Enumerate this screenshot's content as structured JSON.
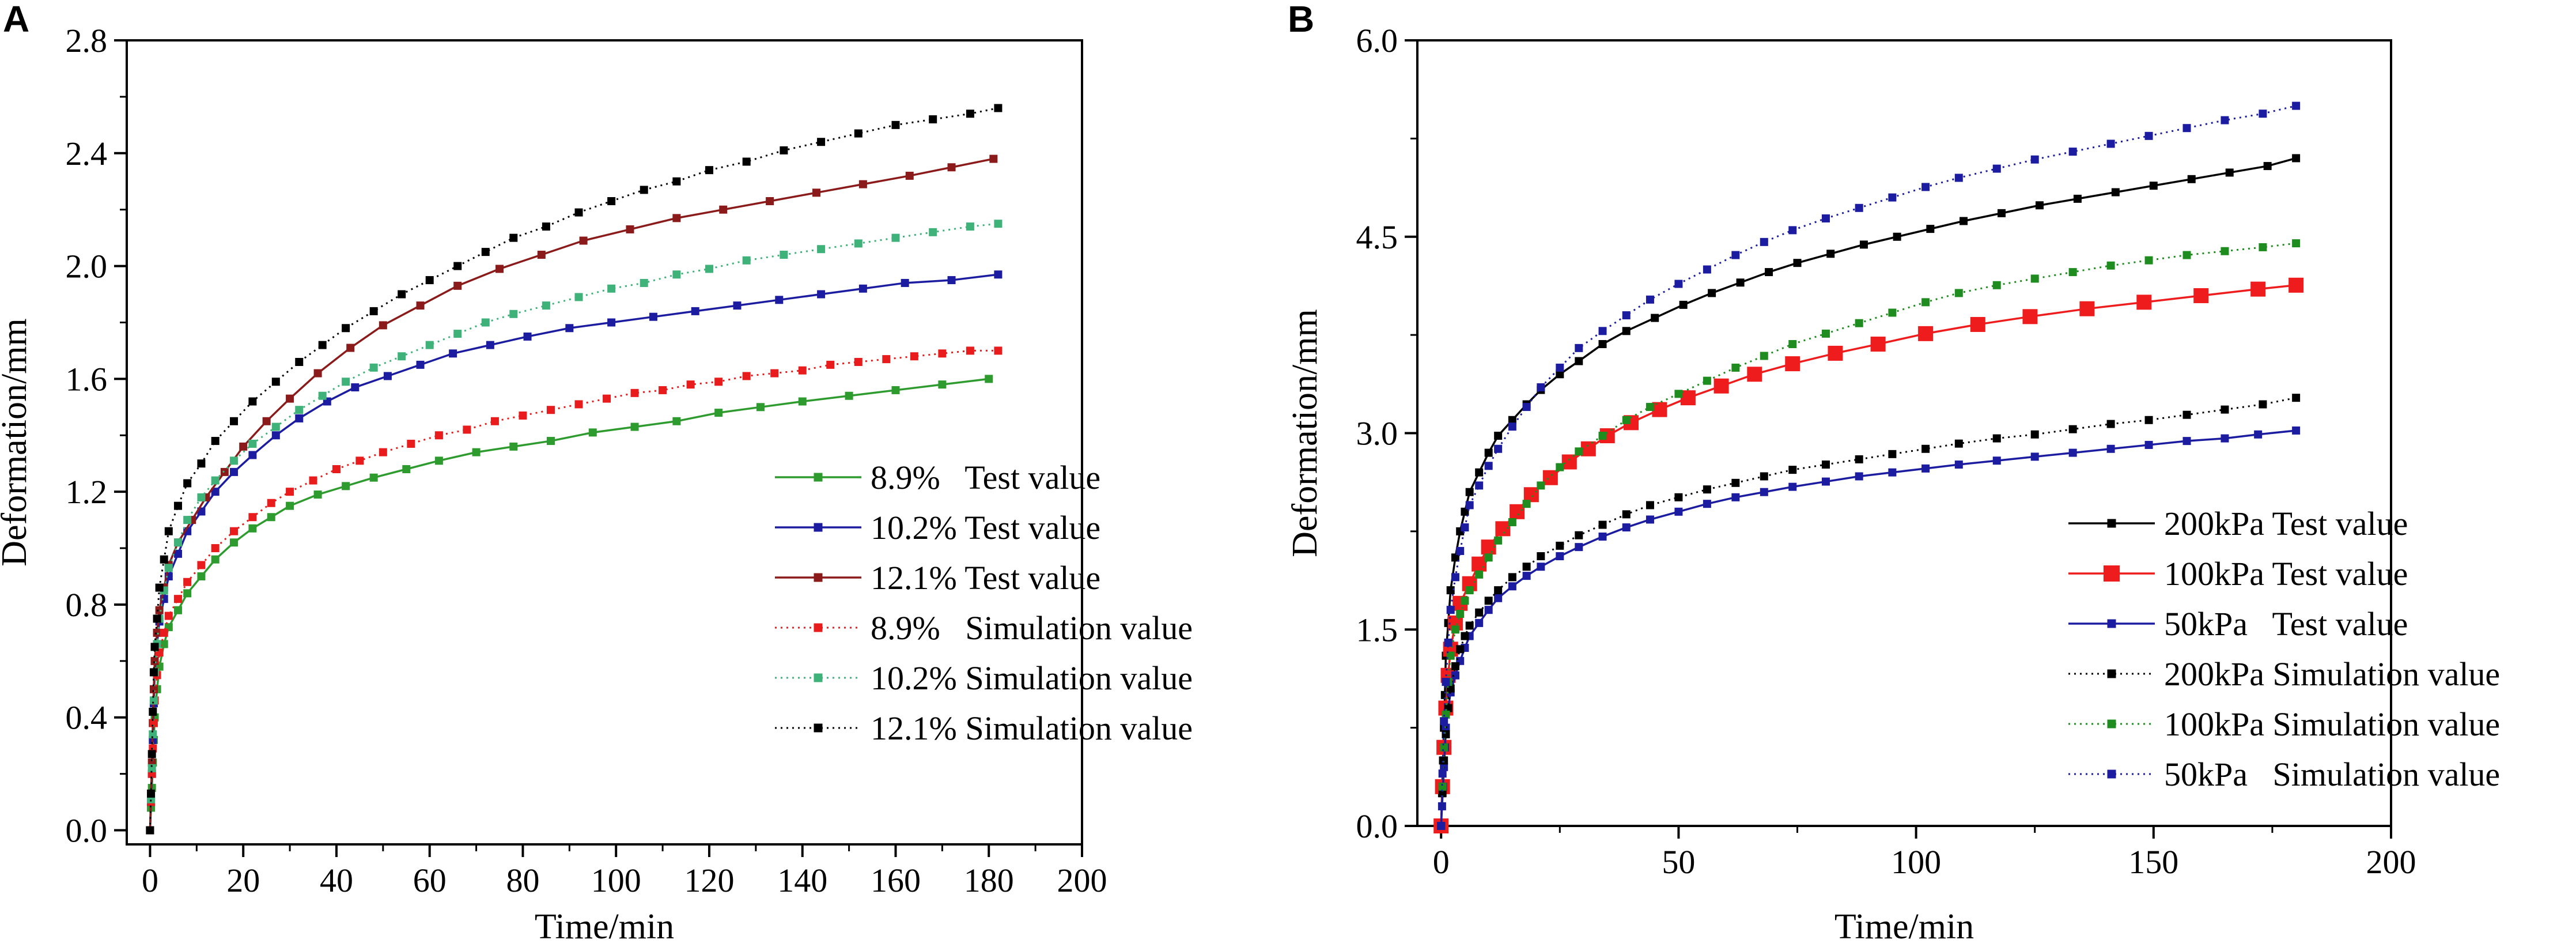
{
  "chart_data": [
    {
      "type": "line",
      "panel_label": "A",
      "xlabel": "Time/min",
      "ylabel": "Deformation/mm",
      "xlim": [
        -5,
        200
      ],
      "ylim": [
        -0.05,
        2.8
      ],
      "xticks": [
        "0",
        "20",
        "40",
        "60",
        "80",
        "100",
        "120",
        "140",
        "160",
        "180",
        "200"
      ],
      "yticks": [
        "0.0",
        "0.4",
        "0.8",
        "1.2",
        "1.6",
        "2.0",
        "2.4",
        "2.8"
      ],
      "legend_position": "lower-right",
      "series": [
        {
          "name": "8.9%   Test value",
          "color": "#2e9b2e",
          "style": "solid",
          "x": [
            0,
            0.2,
            0.4,
            0.6,
            0.8,
            1,
            1.5,
            2,
            3,
            4,
            6,
            8,
            11,
            14,
            18,
            22,
            26,
            30,
            36,
            42,
            48,
            55,
            62,
            70,
            78,
            86,
            95,
            104,
            113,
            122,
            131,
            140,
            150,
            160,
            170,
            180
          ],
          "y": [
            0,
            0.08,
            0.15,
            0.24,
            0.32,
            0.4,
            0.5,
            0.58,
            0.66,
            0.72,
            0.78,
            0.84,
            0.9,
            0.96,
            1.02,
            1.07,
            1.11,
            1.15,
            1.19,
            1.22,
            1.25,
            1.28,
            1.31,
            1.34,
            1.36,
            1.38,
            1.41,
            1.43,
            1.45,
            1.48,
            1.5,
            1.52,
            1.54,
            1.56,
            1.58,
            1.6
          ]
        },
        {
          "name": "10.2% Test value",
          "color": "#1c1ca0",
          "style": "solid",
          "x": [
            0,
            0.2,
            0.4,
            0.6,
            0.8,
            1,
            1.5,
            2,
            3,
            4,
            6,
            8,
            11,
            14,
            18,
            22,
            27,
            32,
            38,
            44,
            51,
            58,
            65,
            73,
            81,
            90,
            99,
            108,
            117,
            126,
            135,
            144,
            153,
            162,
            172,
            182
          ],
          "y": [
            0,
            0.1,
            0.2,
            0.32,
            0.45,
            0.56,
            0.66,
            0.74,
            0.82,
            0.9,
            0.98,
            1.06,
            1.13,
            1.2,
            1.27,
            1.33,
            1.4,
            1.46,
            1.52,
            1.57,
            1.61,
            1.65,
            1.69,
            1.72,
            1.75,
            1.78,
            1.8,
            1.82,
            1.84,
            1.86,
            1.88,
            1.9,
            1.92,
            1.94,
            1.95,
            1.97
          ]
        },
        {
          "name": "12.1% Test value",
          "color": "#8b1a1a",
          "style": "solid",
          "x": [
            0,
            0.2,
            0.4,
            0.6,
            0.8,
            1,
            1.5,
            2,
            3,
            4,
            6,
            9,
            12,
            16,
            20,
            25,
            30,
            36,
            43,
            50,
            58,
            66,
            75,
            84,
            93,
            103,
            113,
            123,
            133,
            143,
            153,
            163,
            172,
            181
          ],
          "y": [
            0,
            0.12,
            0.24,
            0.38,
            0.5,
            0.6,
            0.7,
            0.78,
            0.86,
            0.94,
            1.02,
            1.1,
            1.18,
            1.27,
            1.36,
            1.45,
            1.53,
            1.62,
            1.71,
            1.79,
            1.86,
            1.93,
            1.99,
            2.04,
            2.09,
            2.13,
            2.17,
            2.2,
            2.23,
            2.26,
            2.29,
            2.32,
            2.35,
            2.38
          ]
        },
        {
          "name": "8.9%   Simulation value",
          "color": "#e81c1c",
          "style": "dotted",
          "x": [
            0,
            0.2,
            0.4,
            0.6,
            0.8,
            1,
            1.5,
            2,
            3,
            4,
            6,
            8,
            11,
            14,
            18,
            22,
            26,
            30,
            35,
            40,
            45,
            50,
            56,
            62,
            68,
            74,
            80,
            86,
            92,
            98,
            104,
            110,
            116,
            122,
            128,
            134,
            140,
            146,
            152,
            158,
            164,
            170,
            176,
            182
          ],
          "y": [
            0,
            0.1,
            0.2,
            0.29,
            0.38,
            0.46,
            0.55,
            0.63,
            0.7,
            0.76,
            0.82,
            0.88,
            0.94,
            1.0,
            1.06,
            1.11,
            1.16,
            1.2,
            1.24,
            1.28,
            1.31,
            1.34,
            1.37,
            1.4,
            1.42,
            1.45,
            1.47,
            1.49,
            1.51,
            1.53,
            1.55,
            1.56,
            1.58,
            1.59,
            1.61,
            1.62,
            1.63,
            1.65,
            1.66,
            1.67,
            1.68,
            1.69,
            1.7,
            1.7
          ]
        },
        {
          "name": "10.2% Simulation value",
          "color": "#3fb27a",
          "style": "dotted",
          "x": [
            0,
            0.2,
            0.4,
            0.6,
            0.8,
            1,
            1.5,
            2,
            3,
            4,
            6,
            8,
            11,
            14,
            18,
            22,
            27,
            32,
            37,
            42,
            48,
            54,
            60,
            66,
            72,
            78,
            85,
            92,
            99,
            106,
            113,
            120,
            128,
            136,
            144,
            152,
            160,
            168,
            176,
            182
          ],
          "y": [
            0,
            0.11,
            0.22,
            0.34,
            0.46,
            0.56,
            0.66,
            0.75,
            0.85,
            0.93,
            1.02,
            1.1,
            1.18,
            1.24,
            1.31,
            1.37,
            1.43,
            1.49,
            1.54,
            1.59,
            1.64,
            1.68,
            1.72,
            1.76,
            1.8,
            1.83,
            1.86,
            1.89,
            1.92,
            1.94,
            1.97,
            1.99,
            2.02,
            2.04,
            2.06,
            2.08,
            2.1,
            2.12,
            2.14,
            2.15
          ]
        },
        {
          "name": "12.1% Simulation value",
          "color": "#000000",
          "style": "dotted",
          "x": [
            0,
            0.2,
            0.4,
            0.6,
            0.8,
            1,
            1.5,
            2,
            3,
            4,
            6,
            8,
            11,
            14,
            18,
            22,
            27,
            32,
            37,
            42,
            48,
            54,
            60,
            66,
            72,
            78,
            85,
            92,
            99,
            106,
            113,
            120,
            128,
            136,
            144,
            152,
            160,
            168,
            176,
            182
          ],
          "y": [
            0,
            0.13,
            0.27,
            0.42,
            0.56,
            0.65,
            0.75,
            0.86,
            0.96,
            1.06,
            1.15,
            1.23,
            1.3,
            1.38,
            1.45,
            1.52,
            1.59,
            1.66,
            1.72,
            1.78,
            1.84,
            1.9,
            1.95,
            2.0,
            2.05,
            2.1,
            2.14,
            2.19,
            2.23,
            2.27,
            2.3,
            2.34,
            2.37,
            2.41,
            2.44,
            2.47,
            2.5,
            2.52,
            2.54,
            2.56
          ]
        }
      ]
    },
    {
      "type": "line",
      "panel_label": "B",
      "xlabel": "Time/min",
      "ylabel": "Deformation/mm",
      "xlim": [
        -5,
        200
      ],
      "ylim": [
        0,
        6.0
      ],
      "xticks": [
        "0",
        "50",
        "100",
        "150",
        "200"
      ],
      "yticks": [
        "0.0",
        "1.5",
        "3.0",
        "4.5",
        "6.0"
      ],
      "legend_position": "lower-right",
      "series": [
        {
          "name": "200kPa Test value",
          "color": "#000000",
          "style": "solid",
          "x": [
            0,
            0.2,
            0.4,
            0.6,
            0.8,
            1,
            1.5,
            2,
            3,
            4,
            5,
            6,
            8,
            10,
            12,
            15,
            18,
            21,
            25,
            29,
            34,
            39,
            45,
            51,
            57,
            63,
            69,
            75,
            82,
            89,
            96,
            103,
            110,
            118,
            126,
            134,
            142,
            150,
            158,
            166,
            174,
            180
          ],
          "y": [
            0,
            0.25,
            0.5,
            0.75,
            1.0,
            1.3,
            1.55,
            1.8,
            2.05,
            2.25,
            2.4,
            2.55,
            2.7,
            2.85,
            2.98,
            3.1,
            3.22,
            3.33,
            3.45,
            3.55,
            3.68,
            3.78,
            3.88,
            3.98,
            4.07,
            4.15,
            4.23,
            4.3,
            4.37,
            4.44,
            4.5,
            4.56,
            4.62,
            4.68,
            4.74,
            4.79,
            4.84,
            4.89,
            4.94,
            4.99,
            5.04,
            5.1
          ]
        },
        {
          "name": "100kPa Test value",
          "color": "#ee1c1c",
          "style": "solid",
          "big_marker": true,
          "x": [
            0,
            0.3,
            0.6,
            1,
            1.5,
            2,
            3,
            4,
            6,
            8,
            10,
            13,
            16,
            19,
            23,
            27,
            31,
            35,
            40,
            46,
            52,
            59,
            66,
            74,
            83,
            92,
            102,
            113,
            124,
            136,
            148,
            160,
            172,
            180
          ],
          "y": [
            0,
            0.3,
            0.6,
            0.9,
            1.15,
            1.35,
            1.55,
            1.7,
            1.85,
            2.0,
            2.13,
            2.27,
            2.4,
            2.53,
            2.66,
            2.78,
            2.88,
            2.98,
            3.08,
            3.18,
            3.27,
            3.36,
            3.45,
            3.53,
            3.61,
            3.68,
            3.76,
            3.83,
            3.89,
            3.95,
            4.0,
            4.05,
            4.1,
            4.13
          ]
        },
        {
          "name": "50kPa   Test value",
          "color": "#1c1ca0",
          "style": "solid",
          "x": [
            0,
            0.2,
            0.4,
            0.6,
            0.8,
            1,
            1.5,
            2,
            3,
            4,
            5,
            6,
            8,
            10,
            12,
            15,
            18,
            21,
            25,
            29,
            34,
            39,
            44,
            50,
            56,
            62,
            68,
            74,
            81,
            88,
            95,
            102,
            109,
            117,
            125,
            133,
            141,
            149,
            157,
            165,
            172,
            180
          ],
          "y": [
            0,
            0.15,
            0.3,
            0.45,
            0.6,
            0.75,
            0.9,
            1.02,
            1.15,
            1.26,
            1.36,
            1.45,
            1.55,
            1.65,
            1.74,
            1.83,
            1.91,
            1.98,
            2.06,
            2.13,
            2.21,
            2.28,
            2.34,
            2.4,
            2.46,
            2.51,
            2.55,
            2.59,
            2.63,
            2.67,
            2.7,
            2.73,
            2.76,
            2.79,
            2.82,
            2.85,
            2.88,
            2.91,
            2.94,
            2.96,
            2.99,
            3.02
          ]
        },
        {
          "name": "200kPa Simulation value",
          "color": "#000000",
          "style": "dotted",
          "x": [
            0,
            0.3,
            0.6,
            1,
            1.5,
            2,
            3,
            4,
            5,
            6,
            8,
            10,
            12,
            15,
            18,
            21,
            25,
            29,
            34,
            39,
            44,
            50,
            56,
            62,
            68,
            74,
            81,
            88,
            95,
            102,
            109,
            117,
            125,
            133,
            141,
            149,
            157,
            165,
            173,
            180
          ],
          "y": [
            0,
            0.25,
            0.5,
            0.7,
            0.9,
            1.05,
            1.22,
            1.35,
            1.45,
            1.53,
            1.63,
            1.72,
            1.8,
            1.9,
            1.98,
            2.06,
            2.14,
            2.22,
            2.3,
            2.38,
            2.45,
            2.51,
            2.57,
            2.62,
            2.67,
            2.72,
            2.76,
            2.8,
            2.84,
            2.88,
            2.92,
            2.96,
            2.99,
            3.03,
            3.07,
            3.1,
            3.14,
            3.18,
            3.22,
            3.27
          ]
        },
        {
          "name": "100kPa Simulation value",
          "color": "#1f8c1f",
          "style": "dotted",
          "x": [
            0,
            0.3,
            0.6,
            1,
            1.5,
            2,
            3,
            4,
            5,
            6,
            8,
            10,
            12,
            15,
            18,
            21,
            25,
            29,
            34,
            39,
            44,
            50,
            56,
            62,
            68,
            74,
            81,
            88,
            95,
            102,
            109,
            117,
            125,
            133,
            141,
            149,
            157,
            165,
            173,
            180
          ],
          "y": [
            0,
            0.3,
            0.6,
            0.85,
            1.1,
            1.3,
            1.5,
            1.62,
            1.72,
            1.8,
            1.92,
            2.05,
            2.18,
            2.32,
            2.46,
            2.6,
            2.74,
            2.86,
            2.98,
            3.1,
            3.2,
            3.3,
            3.4,
            3.5,
            3.59,
            3.68,
            3.76,
            3.84,
            3.92,
            4.0,
            4.07,
            4.13,
            4.18,
            4.23,
            4.28,
            4.32,
            4.36,
            4.39,
            4.42,
            4.45
          ]
        },
        {
          "name": "50kPa   Simulation value",
          "color": "#1c1ca0",
          "style": "dotted",
          "x": [
            0,
            0.3,
            0.6,
            1,
            1.5,
            2,
            3,
            4,
            5,
            6,
            8,
            10,
            12,
            15,
            18,
            21,
            25,
            29,
            34,
            39,
            44,
            50,
            56,
            62,
            68,
            74,
            81,
            88,
            95,
            102,
            109,
            117,
            125,
            133,
            141,
            149,
            157,
            165,
            173,
            180
          ],
          "y": [
            0,
            0.4,
            0.8,
            1.1,
            1.4,
            1.65,
            1.9,
            2.1,
            2.28,
            2.45,
            2.6,
            2.75,
            2.88,
            3.05,
            3.2,
            3.35,
            3.5,
            3.65,
            3.78,
            3.9,
            4.02,
            4.14,
            4.25,
            4.36,
            4.46,
            4.55,
            4.64,
            4.72,
            4.8,
            4.88,
            4.95,
            5.02,
            5.09,
            5.15,
            5.21,
            5.27,
            5.33,
            5.39,
            5.44,
            5.5
          ]
        }
      ]
    }
  ]
}
